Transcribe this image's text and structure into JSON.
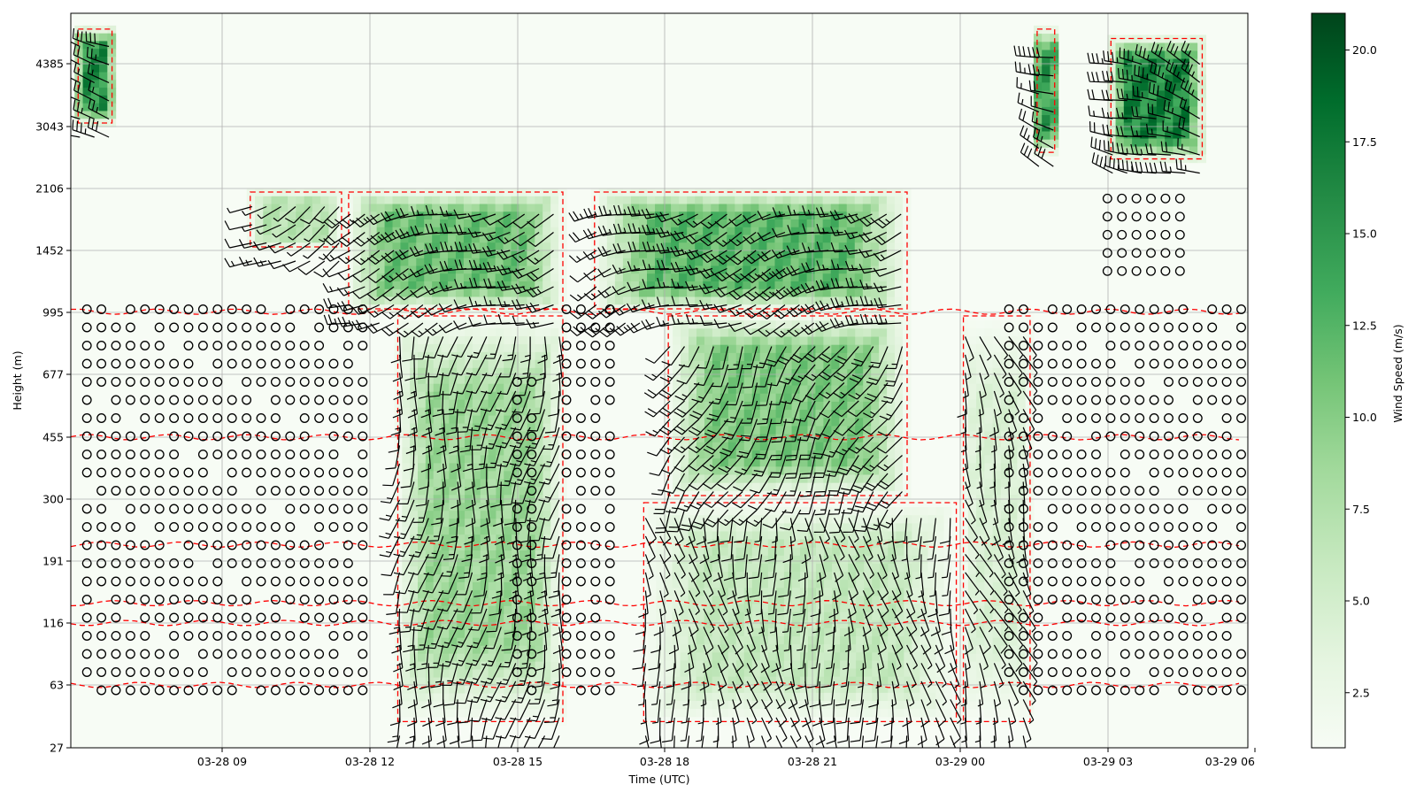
{
  "chart_data": {
    "type": "heatmap",
    "title": "",
    "xlabel": "Time (UTC)",
    "ylabel": "Height (m)",
    "colorbar_label": "Wind Speed (m/s)",
    "x_range": [
      "03-28 06:00",
      "03-29 06:00"
    ],
    "x_ticks": [
      "03-28 09",
      "03-28 12",
      "03-28 15",
      "03-28 18",
      "03-28 21",
      "03-29 00",
      "03-29 03",
      "03-29 06"
    ],
    "y_ticks": [
      "27",
      "63",
      "116",
      "191",
      "300",
      "455",
      "677",
      "995",
      "1452",
      "2106",
      "3043",
      "4385"
    ],
    "colorbar_ticks": [
      "2.5",
      "5.0",
      "7.5",
      "10.0",
      "12.5",
      "15.0",
      "17.5",
      "20.0"
    ],
    "colorbar_range": [
      1,
      21
    ],
    "colormap": "Greens",
    "grid": true,
    "series": [
      {
        "name": "wind speed",
        "render": "heatmap"
      },
      {
        "name": "wind barbs",
        "render": "barbs",
        "color": "#000000"
      },
      {
        "name": "calm",
        "render": "circle markers",
        "color": "#000000"
      },
      {
        "name": "contour",
        "render": "dashed line",
        "color": "#ff0000"
      }
    ],
    "wind_regimes": [
      {
        "start": "03-28 06:00",
        "end": "03-28 06:50",
        "bottom_m": 3043,
        "top_m": 5200,
        "speed_ms": 18,
        "from_deg": 280
      },
      {
        "start": "03-28 09:30",
        "end": "03-28 11:30",
        "bottom_m": 1452,
        "top_m": 2106,
        "speed_ms": 8,
        "from_deg": 240
      },
      {
        "start": "03-28 11:30",
        "end": "03-28 16:00",
        "bottom_m": 995,
        "top_m": 2106,
        "speed_ms": 13,
        "from_deg": 250
      },
      {
        "start": "03-28 12:30",
        "end": "03-28 16:00",
        "bottom_m": 40,
        "top_m": 995,
        "speed_ms": 10,
        "from_deg": 190
      },
      {
        "start": "03-28 16:30",
        "end": "03-28 23:00",
        "bottom_m": 995,
        "top_m": 2106,
        "speed_ms": 14,
        "from_deg": 250
      },
      {
        "start": "03-28 18:00",
        "end": "03-28 23:00",
        "bottom_m": 300,
        "top_m": 995,
        "speed_ms": 12,
        "from_deg": 210
      },
      {
        "start": "03-28 17:30",
        "end": "03-29 00:00",
        "bottom_m": 40,
        "top_m": 300,
        "speed_ms": 7,
        "from_deg": 170
      },
      {
        "start": "03-29 00:00",
        "end": "03-29 01:30",
        "bottom_m": 40,
        "top_m": 995,
        "speed_ms": 5,
        "from_deg": 160
      },
      {
        "start": "03-29 01:30",
        "end": "03-29 02:00",
        "bottom_m": 2600,
        "top_m": 5200,
        "speed_ms": 17,
        "from_deg": 290
      },
      {
        "start": "03-29 03:00",
        "end": "03-29 05:00",
        "bottom_m": 2500,
        "top_m": 5000,
        "speed_ms": 19,
        "from_deg": 290
      }
    ],
    "calm_blocks": [
      {
        "start": "03-28 06:15",
        "end": "03-28 12:00",
        "bottom_m": 45,
        "top_m": 1100
      },
      {
        "start": "03-28 15:00",
        "end": "03-28 15:30",
        "bottom_m": 45,
        "top_m": 677
      },
      {
        "start": "03-28 16:00",
        "end": "03-28 17:00",
        "bottom_m": 45,
        "top_m": 1100
      },
      {
        "start": "03-29 01:00",
        "end": "03-29 06:00",
        "bottom_m": 45,
        "top_m": 1100
      },
      {
        "start": "03-29 03:00",
        "end": "03-29 04:30",
        "bottom_m": 1300,
        "top_m": 2106
      }
    ]
  }
}
